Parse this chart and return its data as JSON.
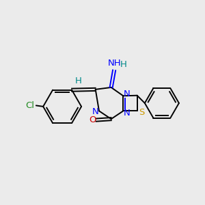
{
  "background_color": "#ebebeb",
  "figsize": [
    3.0,
    3.0
  ],
  "dpi": 100,
  "xlim": [
    0.0,
    1.0
  ],
  "ylim": [
    0.0,
    1.0
  ],
  "bond_lw": 1.4,
  "font_size": 9.5,
  "colors": {
    "black": "#000000",
    "blue": "#0000FF",
    "red": "#CC0000",
    "green": "#228B22",
    "teal": "#008888",
    "yellow": "#CC9900",
    "bg": "#ebebeb"
  }
}
